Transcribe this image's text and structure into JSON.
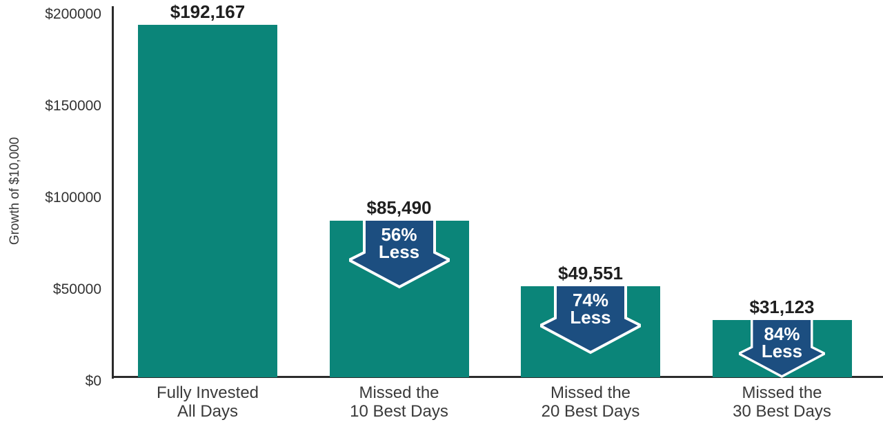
{
  "chart_data": {
    "type": "bar",
    "title": "",
    "xlabel": "",
    "ylabel": "Growth of $10,000",
    "ylim": [
      0,
      200000
    ],
    "grid": false,
    "legend": false,
    "yticks": [
      {
        "value": 0,
        "label": "$0"
      },
      {
        "value": 50000,
        "label": "$50000"
      },
      {
        "value": 100000,
        "label": "$100000"
      },
      {
        "value": 150000,
        "label": "$150000"
      },
      {
        "value": 200000,
        "label": "$200000"
      }
    ],
    "bars": [
      {
        "category_line1": "Fully Invested",
        "category_line2": "All Days",
        "value": 192167,
        "value_label": "$192,167",
        "arrow": null
      },
      {
        "category_line1": "Missed the",
        "category_line2": "10 Best Days",
        "value": 85490,
        "value_label": "$85,490",
        "arrow": {
          "pct": "56%",
          "word": "Less"
        }
      },
      {
        "category_line1": "Missed the",
        "category_line2": "20 Best Days",
        "value": 49551,
        "value_label": "$49,551",
        "arrow": {
          "pct": "74%",
          "word": "Less"
        }
      },
      {
        "category_line1": "Missed the",
        "category_line2": "30 Best Days",
        "value": 31123,
        "value_label": "$31,123",
        "arrow": {
          "pct": "84%",
          "word": "Less"
        }
      }
    ],
    "colors": {
      "bar": "#0B8579",
      "arrow_fill": "#1C4E80",
      "arrow_outline": "#FFFFFF",
      "axis_line": "#2B2B2B",
      "value_text": "#1F1F1F",
      "label_text": "#3A3A3A"
    }
  }
}
